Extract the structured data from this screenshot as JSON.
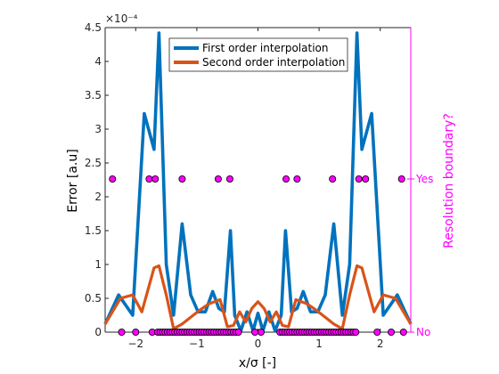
{
  "chart_data": {
    "type": "line",
    "xlabel": "x/σ [-]",
    "ylabel": "Error [a.u]",
    "y_exponent_label": "×10⁻⁴",
    "y2label": "Resolution boundary?",
    "xlim": [
      -2.5,
      2.5
    ],
    "ylim": [
      0,
      4.5
    ],
    "x_ticks": [
      -2,
      -1,
      0,
      1,
      2
    ],
    "y_ticks": [
      0,
      0.5,
      1,
      1.5,
      2,
      2.5,
      3,
      3.5,
      4,
      4.5
    ],
    "y2_ticks": [
      "No",
      "Yes"
    ],
    "legend_position": "top",
    "series": [
      {
        "name": "First order interpolation",
        "color": "#0072BD",
        "x": [
          -2.5,
          -2.28,
          -2.05,
          -1.86,
          -1.7,
          -1.62,
          -1.5,
          -1.38,
          -1.24,
          -1.1,
          -0.98,
          -0.86,
          -0.74,
          -0.64,
          -0.55,
          -0.45,
          -0.38,
          -0.28,
          -0.18,
          -0.08,
          0.0,
          0.08,
          0.18,
          0.28,
          0.38,
          0.45,
          0.55,
          0.64,
          0.74,
          0.86,
          0.98,
          1.1,
          1.24,
          1.38,
          1.5,
          1.62,
          1.7,
          1.86,
          2.05,
          2.28,
          2.5
        ],
        "values": [
          0.12,
          0.55,
          0.25,
          3.23,
          2.7,
          4.42,
          1.0,
          0.25,
          1.6,
          0.55,
          0.3,
          0.3,
          0.6,
          0.35,
          0.3,
          1.5,
          0.25,
          0.02,
          0.3,
          0.02,
          0.28,
          0.02,
          0.3,
          0.02,
          0.25,
          1.5,
          0.3,
          0.35,
          0.6,
          0.3,
          0.3,
          0.55,
          1.6,
          0.25,
          1.0,
          4.42,
          2.7,
          3.23,
          0.25,
          0.55,
          0.12
        ]
      },
      {
        "name": "Second order interpolation",
        "color": "#D95319",
        "x": [
          -2.5,
          -2.25,
          -2.05,
          -1.9,
          -1.7,
          -1.62,
          -1.5,
          -1.38,
          -1.24,
          -1.1,
          -0.96,
          -0.8,
          -0.62,
          -0.5,
          -0.4,
          -0.3,
          -0.2,
          -0.1,
          0.0,
          0.1,
          0.2,
          0.3,
          0.4,
          0.5,
          0.62,
          0.8,
          0.96,
          1.1,
          1.24,
          1.38,
          1.5,
          1.62,
          1.7,
          1.9,
          2.05,
          2.25,
          2.5
        ],
        "values": [
          0.12,
          0.5,
          0.55,
          0.3,
          0.95,
          0.98,
          0.55,
          0.05,
          0.12,
          0.22,
          0.32,
          0.42,
          0.48,
          0.08,
          0.1,
          0.3,
          0.15,
          0.35,
          0.45,
          0.35,
          0.15,
          0.3,
          0.1,
          0.08,
          0.48,
          0.42,
          0.32,
          0.22,
          0.12,
          0.05,
          0.55,
          0.98,
          0.95,
          0.3,
          0.55,
          0.5,
          0.12
        ]
      }
    ],
    "markers": {
      "name": "Resolution boundary?",
      "color": "#FF00FF",
      "edge": "#000000",
      "yes_x": [
        -2.38,
        -1.78,
        -1.68,
        -1.24,
        -0.65,
        -0.46,
        0.46,
        0.64,
        1.22,
        1.65,
        1.76,
        2.35
      ],
      "no_x": [
        -2.23,
        -2.0,
        -1.73,
        -1.64,
        -1.6,
        -1.56,
        -1.52,
        -1.48,
        -1.44,
        -1.4,
        -1.36,
        -1.32,
        -1.28,
        -1.24,
        -1.2,
        -1.16,
        -1.12,
        -1.08,
        -1.04,
        -1.0,
        -0.96,
        -0.92,
        -0.88,
        -0.84,
        -0.8,
        -0.76,
        -0.72,
        -0.68,
        -0.64,
        -0.6,
        -0.56,
        -0.52,
        -0.48,
        -0.44,
        -0.4,
        -0.36,
        -0.32,
        -0.05,
        0.05,
        0.36,
        0.4,
        0.44,
        0.48,
        0.52,
        0.56,
        0.6,
        0.64,
        0.68,
        0.72,
        0.76,
        0.8,
        0.84,
        0.88,
        0.92,
        0.96,
        1.0,
        1.04,
        1.08,
        1.12,
        1.16,
        1.2,
        1.24,
        1.28,
        1.32,
        1.36,
        1.4,
        1.44,
        1.48,
        1.52,
        1.56,
        1.6,
        1.95,
        2.18,
        2.38
      ]
    }
  }
}
